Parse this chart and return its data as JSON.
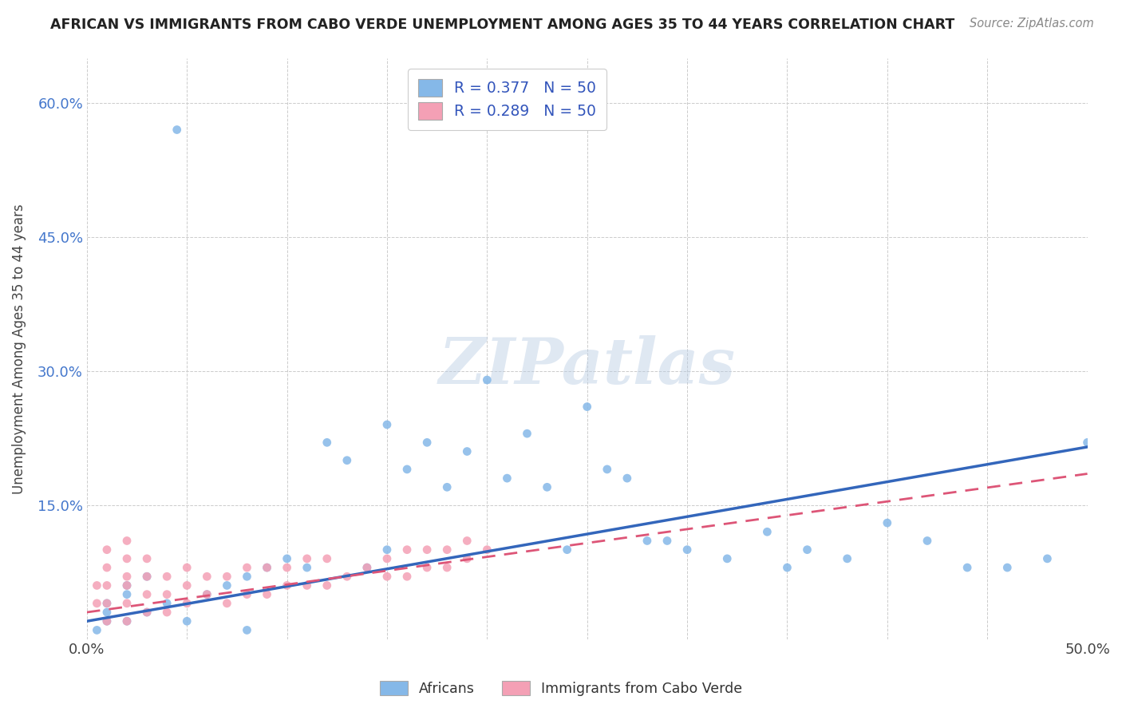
{
  "title": "AFRICAN VS IMMIGRANTS FROM CABO VERDE UNEMPLOYMENT AMONG AGES 35 TO 44 YEARS CORRELATION CHART",
  "source": "Source: ZipAtlas.com",
  "ylabel": "Unemployment Among Ages 35 to 44 years",
  "xlim": [
    0.0,
    0.5
  ],
  "ylim": [
    0.0,
    0.65
  ],
  "x_ticks": [
    0.0,
    0.05,
    0.1,
    0.15,
    0.2,
    0.25,
    0.3,
    0.35,
    0.4,
    0.45,
    0.5
  ],
  "x_tick_labels": [
    "0.0%",
    "",
    "",
    "",
    "",
    "",
    "",
    "",
    "",
    "",
    "50.0%"
  ],
  "y_ticks": [
    0.0,
    0.15,
    0.3,
    0.45,
    0.6
  ],
  "y_tick_labels": [
    "",
    "15.0%",
    "30.0%",
    "45.0%",
    "60.0%"
  ],
  "grid_color": "#cccccc",
  "background_color": "#ffffff",
  "africans_color": "#85b8e8",
  "cabo_verde_color": "#f4a0b5",
  "africans_line_color": "#3366bb",
  "cabo_verde_line_color": "#dd5577",
  "R_africans": 0.377,
  "N_africans": 50,
  "R_cabo_verde": 0.289,
  "N_cabo_verde": 50,
  "watermark_text": "ZIPatlas",
  "legend_africans": "Africans",
  "legend_cabo_verde": "Immigrants from Cabo Verde",
  "africans_x": [
    0.005,
    0.01,
    0.01,
    0.01,
    0.02,
    0.02,
    0.02,
    0.03,
    0.03,
    0.04,
    0.05,
    0.06,
    0.07,
    0.08,
    0.09,
    0.1,
    0.11,
    0.12,
    0.13,
    0.14,
    0.15,
    0.16,
    0.17,
    0.18,
    0.19,
    0.2,
    0.21,
    0.22,
    0.23,
    0.24,
    0.25,
    0.26,
    0.27,
    0.28,
    0.3,
    0.32,
    0.34,
    0.36,
    0.38,
    0.4,
    0.42,
    0.44,
    0.46,
    0.48,
    0.5,
    0.35,
    0.29,
    0.15,
    0.08,
    0.045
  ],
  "africans_y": [
    0.01,
    0.02,
    0.03,
    0.04,
    0.02,
    0.05,
    0.06,
    0.03,
    0.07,
    0.04,
    0.02,
    0.05,
    0.06,
    0.07,
    0.08,
    0.09,
    0.08,
    0.22,
    0.2,
    0.08,
    0.24,
    0.19,
    0.22,
    0.17,
    0.21,
    0.29,
    0.18,
    0.23,
    0.17,
    0.1,
    0.26,
    0.19,
    0.18,
    0.11,
    0.1,
    0.09,
    0.12,
    0.1,
    0.09,
    0.13,
    0.11,
    0.08,
    0.08,
    0.09,
    0.22,
    0.08,
    0.11,
    0.1,
    0.01,
    0.57
  ],
  "cabo_verde_x": [
    0.005,
    0.005,
    0.01,
    0.01,
    0.01,
    0.01,
    0.01,
    0.02,
    0.02,
    0.02,
    0.02,
    0.02,
    0.02,
    0.03,
    0.03,
    0.03,
    0.03,
    0.04,
    0.04,
    0.04,
    0.05,
    0.05,
    0.05,
    0.06,
    0.06,
    0.07,
    0.07,
    0.08,
    0.08,
    0.09,
    0.09,
    0.1,
    0.1,
    0.11,
    0.11,
    0.12,
    0.12,
    0.13,
    0.14,
    0.15,
    0.15,
    0.16,
    0.16,
    0.17,
    0.17,
    0.18,
    0.18,
    0.19,
    0.19,
    0.2
  ],
  "cabo_verde_y": [
    0.04,
    0.06,
    0.02,
    0.04,
    0.06,
    0.08,
    0.1,
    0.02,
    0.04,
    0.06,
    0.07,
    0.09,
    0.11,
    0.03,
    0.05,
    0.07,
    0.09,
    0.03,
    0.05,
    0.07,
    0.04,
    0.06,
    0.08,
    0.05,
    0.07,
    0.04,
    0.07,
    0.05,
    0.08,
    0.05,
    0.08,
    0.06,
    0.08,
    0.06,
    0.09,
    0.06,
    0.09,
    0.07,
    0.08,
    0.07,
    0.09,
    0.07,
    0.1,
    0.08,
    0.1,
    0.08,
    0.1,
    0.09,
    0.11,
    0.1
  ],
  "africans_trend_x": [
    0.0,
    0.5
  ],
  "africans_trend_y": [
    0.02,
    0.215
  ],
  "cabo_verde_trend_x": [
    0.0,
    0.5
  ],
  "cabo_verde_trend_y": [
    0.03,
    0.185
  ]
}
